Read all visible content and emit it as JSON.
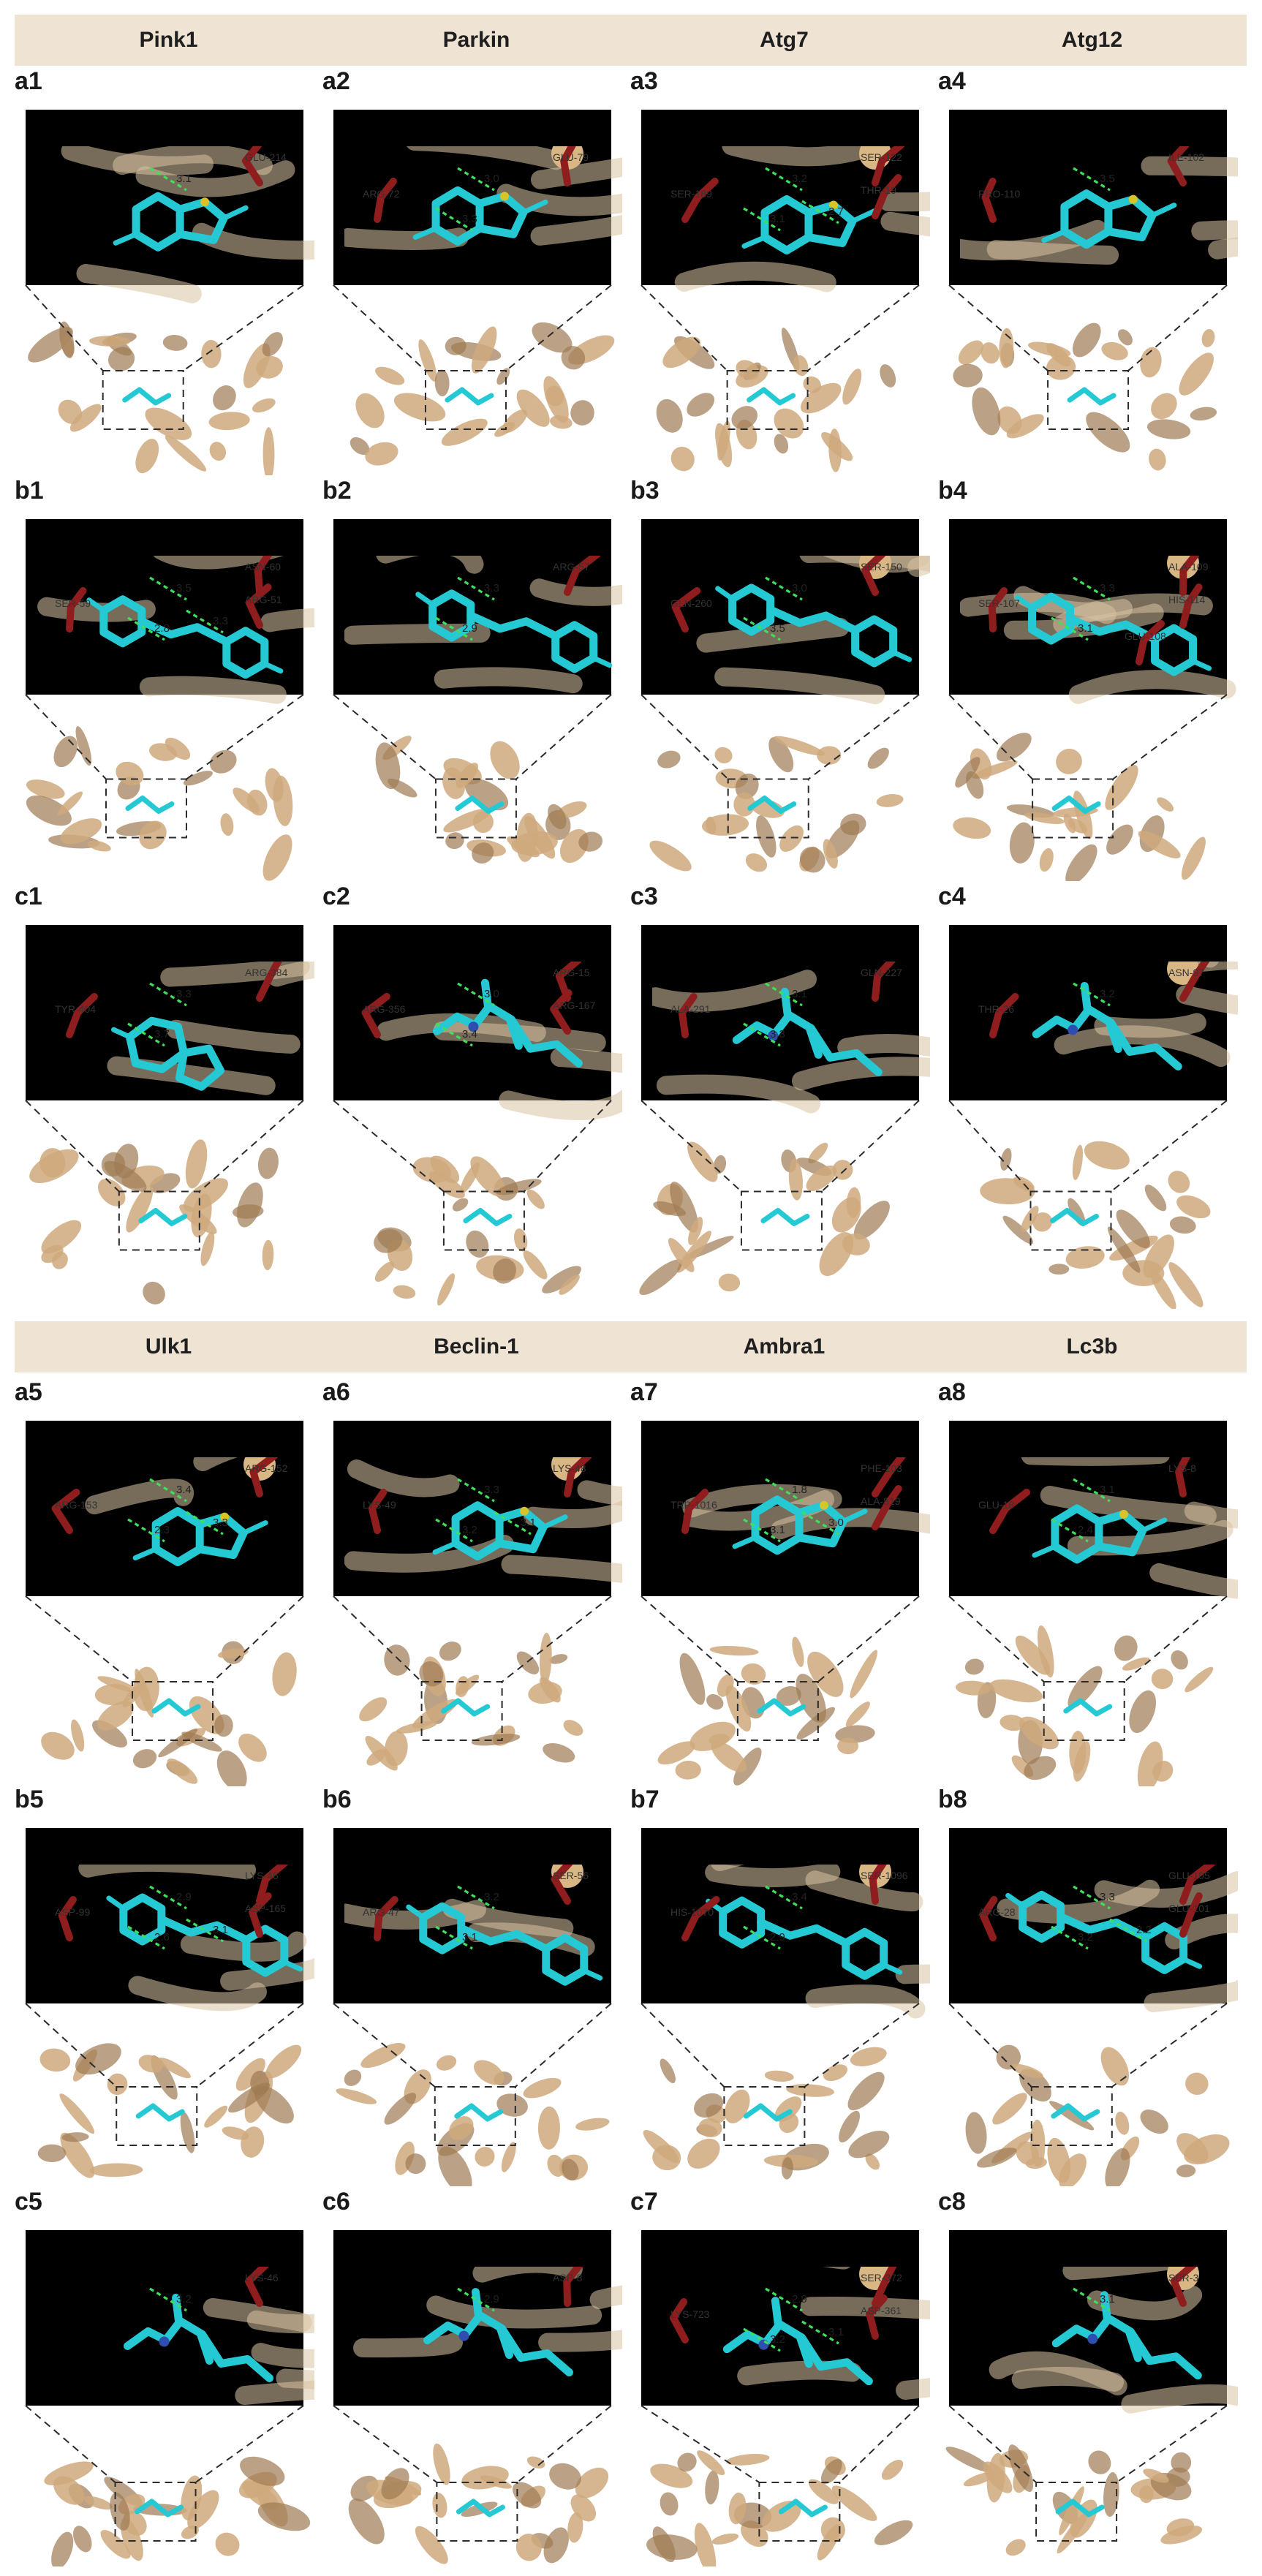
{
  "figure": {
    "top_headers": [
      "Pink1",
      "Parkin",
      "Atg7",
      "Atg12"
    ],
    "bottom_headers": [
      "Ulk1",
      "Beclin-1",
      "Ambra1",
      "Lc3b"
    ],
    "colors": {
      "header_band": "#efe3d3",
      "ligand": "#25c9d4",
      "residue": "#8f1d1d",
      "hbond": "#3ee05a",
      "protein": "#cfa97d"
    },
    "panels": [
      {
        "id": "a1",
        "ligand_type": "beta-lactam",
        "labels": [
          {
            "t": "GLU-214"
          }
        ],
        "distances": [
          "3.1"
        ]
      },
      {
        "id": "a2",
        "ligand_type": "beta-lactam",
        "labels": [
          {
            "t": "GLU-79"
          },
          {
            "t": "ARG-72"
          }
        ],
        "distances": [
          "3.0",
          "3.3"
        ]
      },
      {
        "id": "a3",
        "ligand_type": "beta-lactam",
        "labels": [
          {
            "t": "SER-122"
          },
          {
            "t": "SER-189"
          },
          {
            "t": "THR-19"
          }
        ],
        "distances": [
          "3.2",
          "3.1",
          "2.7"
        ]
      },
      {
        "id": "a4",
        "ligand_type": "beta-lactam",
        "labels": [
          {
            "t": "ILE-102"
          },
          {
            "t": "PRO-110"
          }
        ],
        "distances": [
          "3.5"
        ]
      },
      {
        "id": "b1",
        "ligand_type": "phenylpropanoid",
        "labels": [
          {
            "t": "ASN-60"
          },
          {
            "t": "SER-59"
          },
          {
            "t": "ARG-51"
          }
        ],
        "distances": [
          "3.5",
          "2.8",
          "3.3"
        ]
      },
      {
        "id": "b2",
        "ligand_type": "phenylpropanoid",
        "labels": [
          {
            "t": "ARG-57"
          }
        ],
        "distances": [
          "3.3",
          "2.9"
        ]
      },
      {
        "id": "b3",
        "ligand_type": "phenylpropanoid",
        "labels": [
          {
            "t": "SER-150"
          },
          {
            "t": "GLN-260"
          }
        ],
        "distances": [
          "3.0",
          "3.5"
        ]
      },
      {
        "id": "b4",
        "ligand_type": "phenylpropanoid",
        "labels": [
          {
            "t": "ALA-109"
          },
          {
            "t": "SER-107"
          },
          {
            "t": "HIS-114"
          },
          {
            "t": "GLU-108"
          }
        ],
        "distances": [
          "3.3",
          "3.1"
        ]
      },
      {
        "id": "c1",
        "ligand_type": "diketopiperazine",
        "labels": [
          {
            "t": "ARG-384"
          },
          {
            "t": "TYR-404"
          }
        ],
        "distances": [
          "3.3",
          "3.7"
        ]
      },
      {
        "id": "c2",
        "ligand_type": "alkyl-amine",
        "labels": [
          {
            "t": "ARG-15"
          },
          {
            "t": "ARG-356"
          },
          {
            "t": "ARG-167"
          }
        ],
        "distances": [
          "3.0",
          "3.4"
        ]
      },
      {
        "id": "c3",
        "ligand_type": "alkyl-amine",
        "labels": [
          {
            "t": "GLN-227"
          },
          {
            "t": "ALA-291"
          }
        ],
        "distances": [
          "3.1",
          "3.3"
        ]
      },
      {
        "id": "c4",
        "ligand_type": "alkyl-amine",
        "labels": [
          {
            "t": "ASN-97"
          },
          {
            "t": "THR-26"
          }
        ],
        "distances": [
          "3.2"
        ]
      },
      {
        "id": "a5",
        "ligand_type": "beta-lactam",
        "labels": [
          {
            "t": "ARG-152"
          },
          {
            "t": "ARG-153"
          }
        ],
        "distances": [
          "3.4",
          "2.3",
          "3.3"
        ]
      },
      {
        "id": "a6",
        "ligand_type": "beta-lactam",
        "labels": [
          {
            "t": "LYS-48"
          },
          {
            "t": "LYS-49"
          }
        ],
        "distances": [
          "3.3",
          "3.2",
          "3.1"
        ]
      },
      {
        "id": "a7",
        "ligand_type": "beta-lactam",
        "labels": [
          {
            "t": "PHE-103"
          },
          {
            "t": "TRP-1016"
          },
          {
            "t": "ALA-819"
          }
        ],
        "distances": [
          "1.8",
          "3.1",
          "3.0"
        ]
      },
      {
        "id": "a8",
        "ligand_type": "beta-lactam",
        "labels": [
          {
            "t": "LYS-8"
          },
          {
            "t": "GLU-18"
          }
        ],
        "distances": [
          "3.1",
          "2.4"
        ]
      },
      {
        "id": "b5",
        "ligand_type": "phenylpropanoid",
        "labels": [
          {
            "t": "LYS-46"
          },
          {
            "t": "ASP-99"
          },
          {
            "t": "ASP-165"
          }
        ],
        "distances": [
          "2.9",
          "2.6",
          "3.1"
        ]
      },
      {
        "id": "b6",
        "ligand_type": "phenylpropanoid",
        "labels": [
          {
            "t": "SER-56"
          },
          {
            "t": "ARG-47"
          }
        ],
        "distances": [
          "3.2",
          "3.1"
        ]
      },
      {
        "id": "b7",
        "ligand_type": "phenylpropanoid",
        "labels": [
          {
            "t": "SER-1096"
          },
          {
            "t": "HIS-1070"
          }
        ],
        "distances": [
          "3.4",
          "2.9"
        ]
      },
      {
        "id": "b8",
        "ligand_type": "phenylpropanoid",
        "labels": [
          {
            "t": "GLU-105"
          },
          {
            "t": "ARG-28"
          },
          {
            "t": "GLU-101"
          }
        ],
        "distances": [
          "3.3",
          "3.2",
          "2.2"
        ]
      },
      {
        "id": "c5",
        "ligand_type": "alkyl-amine",
        "labels": [
          {
            "t": "LYS-46"
          }
        ],
        "distances": [
          "3.2"
        ]
      },
      {
        "id": "c6",
        "ligand_type": "alkyl-amine",
        "labels": [
          {
            "t": "ASP-8"
          }
        ],
        "distances": [
          "2.9"
        ]
      },
      {
        "id": "c7",
        "ligand_type": "alkyl-amine",
        "labels": [
          {
            "t": "SER-372"
          },
          {
            "t": "LYS-723"
          },
          {
            "t": "ASP-361"
          }
        ],
        "distances": [
          "2.9",
          "3.2",
          "3.1"
        ]
      },
      {
        "id": "c8",
        "ligand_type": "alkyl-amine",
        "labels": [
          {
            "t": "SER-3"
          }
        ],
        "distances": [
          "3.1"
        ]
      }
    ]
  }
}
